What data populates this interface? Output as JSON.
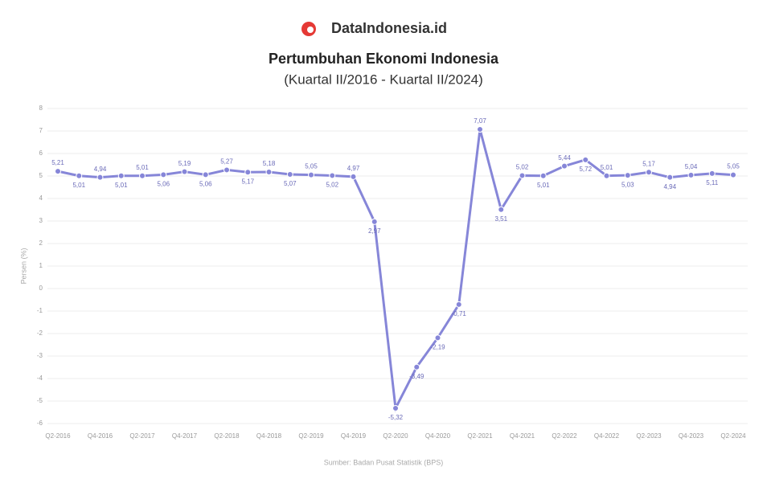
{
  "chart_data": {
    "type": "line",
    "brand": "DataIndonesia.id",
    "title": "Pertumbuhan Ekonomi Indonesia",
    "subtitle": "(Kuartal II/2016 - Kuartal II/2024)",
    "y_label": "Persen (%)",
    "source": "Sumber: Badan Pusat Statistik (BPS)",
    "categories": [
      "Q2-2016",
      null,
      "Q4-2016",
      null,
      "Q2-2017",
      null,
      "Q4-2017",
      null,
      "Q2-2018",
      null,
      "Q4-2018",
      null,
      "Q2-2019",
      null,
      "Q4-2019",
      null,
      "Q2-2020",
      null,
      "Q4-2020",
      null,
      "Q2-2021",
      null,
      "Q4-2021",
      null,
      "Q2-2022",
      null,
      "Q4-2022",
      null,
      "Q2-2023",
      null,
      "Q4-2023",
      null,
      "Q2-2024"
    ],
    "series": [
      {
        "name": "Pertumbuhan Ekonomi",
        "color": "#8686d8",
        "values": [
          5.21,
          5.01,
          4.94,
          5.01,
          5.01,
          5.06,
          5.19,
          5.06,
          5.27,
          5.17,
          5.18,
          5.07,
          5.05,
          5.02,
          4.97,
          2.97,
          -5.32,
          -3.49,
          -2.19,
          -0.71,
          7.07,
          3.51,
          5.02,
          5.01,
          5.44,
          5.72,
          5.01,
          5.03,
          5.17,
          4.94,
          5.04,
          5.11,
          5.05
        ],
        "value_labels": [
          "5,21",
          "5,01",
          "4,94",
          "5,01",
          "5,01",
          "5,06",
          "5,19",
          "5,06",
          "5,27",
          "5,17",
          "5,18",
          "5,07",
          "5,05",
          "5,02",
          "4,97",
          "2,97",
          "-5,32",
          "-3,49",
          "-2,19",
          "-0,71",
          "7,07",
          "3,51",
          "5,02",
          "5,01",
          "5,44",
          "5,72",
          "5,01",
          "5,03",
          "5,17",
          "4,94",
          "5,04",
          "5,11",
          "5,05"
        ]
      }
    ],
    "ylim": [
      -6,
      8
    ],
    "yticks": [
      -6,
      -5,
      -4,
      -3,
      -2,
      -1,
      0,
      1,
      2,
      3,
      4,
      5,
      6,
      7,
      8
    ],
    "grid": true
  }
}
